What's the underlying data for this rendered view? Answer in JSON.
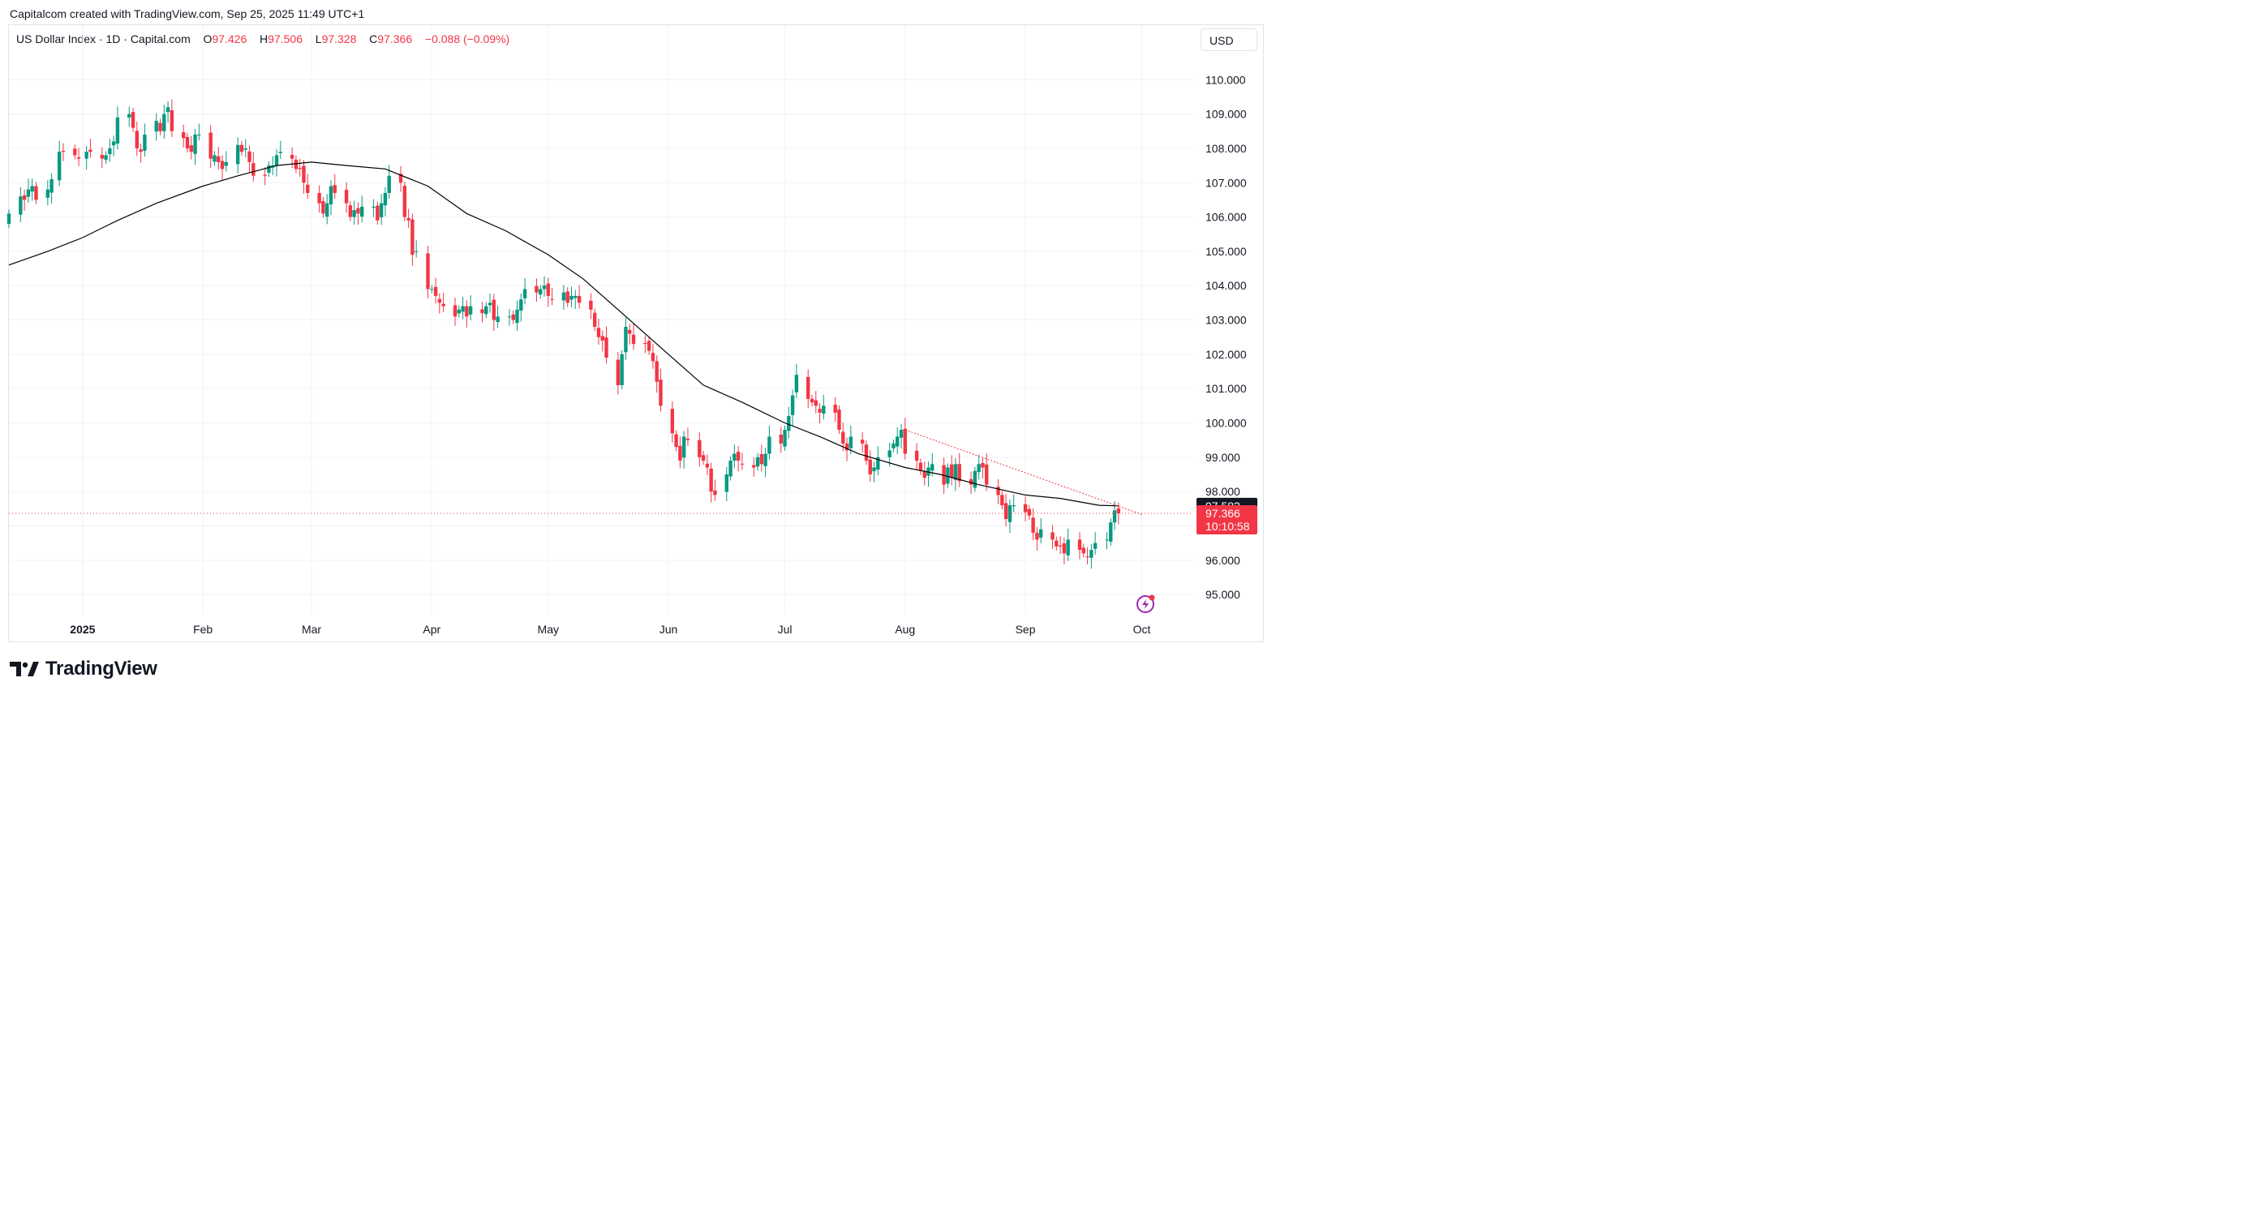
{
  "caption": "Capitalcom created with TradingView.com, Sep 25, 2025 11:49 UTC+1",
  "legend": {
    "symbol": "US Dollar Index · 1D · Capital.com",
    "o_label": "O",
    "o": "97.426",
    "h_label": "H",
    "h": "97.506",
    "l_label": "L",
    "l": "97.328",
    "c_label": "C",
    "c": "97.366",
    "change": "−0.088 (−0.09%)"
  },
  "currency_button": "USD",
  "brand": "TradingView",
  "colors": {
    "up": "#089981",
    "down": "#f23645",
    "ma": "#000000",
    "grid": "#f0f3fa",
    "trend": "#f23645"
  },
  "chart_data": {
    "type": "candlestick",
    "y_axis": {
      "min": 94.6,
      "max": 110.9,
      "ticks": [
        "110.000",
        "109.000",
        "108.000",
        "107.000",
        "106.000",
        "105.000",
        "104.000",
        "103.000",
        "102.000",
        "101.000",
        "100.000",
        "99.000",
        "98.000",
        "97.000",
        "96.000",
        "95.000"
      ],
      "position": "right"
    },
    "x_axis": {
      "start": "2024-12-13",
      "end": "2025-10-08",
      "ticks": [
        {
          "date": "2025-01-01",
          "label": "2025"
        },
        {
          "date": "2025-02-01",
          "label": "Feb"
        },
        {
          "date": "2025-03-01",
          "label": "Mar"
        },
        {
          "date": "2025-04-01",
          "label": "Apr"
        },
        {
          "date": "2025-05-01",
          "label": "May"
        },
        {
          "date": "2025-06-01",
          "label": "Jun"
        },
        {
          "date": "2025-07-01",
          "label": "Jul"
        },
        {
          "date": "2025-08-01",
          "label": "Aug"
        },
        {
          "date": "2025-09-01",
          "label": "Sep"
        },
        {
          "date": "2025-10-01",
          "label": "Oct"
        }
      ]
    },
    "close_series": [
      [
        "2024-12-13",
        106.1
      ],
      [
        "2024-12-16",
        106.6
      ],
      [
        "2024-12-17",
        106.5
      ],
      [
        "2024-12-18",
        106.8
      ],
      [
        "2024-12-19",
        106.9
      ],
      [
        "2024-12-20",
        106.5
      ],
      [
        "2024-12-23",
        106.8
      ],
      [
        "2024-12-24",
        107.1
      ],
      [
        "2024-12-26",
        107.9
      ],
      [
        "2024-12-27",
        107.9
      ],
      [
        "2024-12-30",
        107.8
      ],
      [
        "2024-12-31",
        107.7
      ],
      [
        "2025-01-02",
        107.9
      ],
      [
        "2025-01-03",
        107.9
      ],
      [
        "2025-01-06",
        107.7
      ],
      [
        "2025-01-07",
        107.8
      ],
      [
        "2025-01-08",
        108.0
      ],
      [
        "2025-01-09",
        108.2
      ],
      [
        "2025-01-10",
        108.9
      ],
      [
        "2025-01-13",
        109.0
      ],
      [
        "2025-01-14",
        108.6
      ],
      [
        "2025-01-15",
        108.0
      ],
      [
        "2025-01-16",
        107.9
      ],
      [
        "2025-01-17",
        108.4
      ],
      [
        "2025-01-20",
        108.8
      ],
      [
        "2025-01-21",
        108.5
      ],
      [
        "2025-01-22",
        109.0
      ],
      [
        "2025-01-23",
        109.2
      ],
      [
        "2025-01-24",
        108.5
      ],
      [
        "2025-01-27",
        108.3
      ],
      [
        "2025-01-28",
        108.0
      ],
      [
        "2025-01-29",
        107.9
      ],
      [
        "2025-01-30",
        108.4
      ],
      [
        "2025-01-31",
        108.4
      ],
      [
        "2025-02-03",
        107.7
      ],
      [
        "2025-02-04",
        107.8
      ],
      [
        "2025-02-05",
        107.6
      ],
      [
        "2025-02-06",
        107.4
      ],
      [
        "2025-02-07",
        107.6
      ],
      [
        "2025-02-10",
        108.1
      ],
      [
        "2025-02-11",
        107.9
      ],
      [
        "2025-02-12",
        108.0
      ],
      [
        "2025-02-13",
        107.6
      ],
      [
        "2025-02-14",
        107.2
      ],
      [
        "2025-02-17",
        107.2
      ],
      [
        "2025-02-18",
        107.5
      ],
      [
        "2025-02-19",
        107.5
      ],
      [
        "2025-02-20",
        107.8
      ],
      [
        "2025-02-21",
        107.9
      ],
      [
        "2025-02-24",
        107.7
      ],
      [
        "2025-02-25",
        107.4
      ],
      [
        "2025-02-26",
        107.4
      ],
      [
        "2025-02-27",
        107.0
      ],
      [
        "2025-02-28",
        106.7
      ],
      [
        "2025-03-03",
        106.4
      ],
      [
        "2025-03-04",
        106.1
      ],
      [
        "2025-03-05",
        106.4
      ],
      [
        "2025-03-06",
        106.9
      ],
      [
        "2025-03-07",
        106.7
      ],
      [
        "2025-03-10",
        106.4
      ],
      [
        "2025-03-11",
        106.0
      ],
      [
        "2025-03-12",
        106.2
      ],
      [
        "2025-03-13",
        106.1
      ],
      [
        "2025-03-14",
        106.3
      ],
      [
        "2025-03-17",
        106.3
      ],
      [
        "2025-03-18",
        105.9
      ],
      [
        "2025-03-19",
        106.4
      ],
      [
        "2025-03-20",
        106.7
      ],
      [
        "2025-03-21",
        107.2
      ],
      [
        "2025-03-24",
        107.0
      ],
      [
        "2025-03-25",
        106.0
      ],
      [
        "2025-03-26",
        105.9
      ],
      [
        "2025-03-27",
        104.9
      ],
      [
        "2025-03-28",
        105.0
      ],
      [
        "2025-03-31",
        103.9
      ],
      [
        "2025-04-01",
        103.9
      ],
      [
        "2025-04-02",
        103.7
      ],
      [
        "2025-04-03",
        103.5
      ],
      [
        "2025-04-04",
        103.4
      ],
      [
        "2025-04-07",
        103.1
      ],
      [
        "2025-04-08",
        103.3
      ],
      [
        "2025-04-09",
        103.4
      ],
      [
        "2025-04-10",
        103.1
      ],
      [
        "2025-04-11",
        103.4
      ],
      [
        "2025-04-14",
        103.2
      ],
      [
        "2025-04-15",
        103.4
      ],
      [
        "2025-04-16",
        103.5
      ],
      [
        "2025-04-17",
        103.0
      ],
      [
        "2025-04-18",
        103.1
      ],
      [
        "2025-04-21",
        103.1
      ],
      [
        "2025-04-22",
        103.0
      ],
      [
        "2025-04-23",
        103.3
      ],
      [
        "2025-04-24",
        103.6
      ],
      [
        "2025-04-25",
        103.9
      ],
      [
        "2025-04-28",
        103.8
      ],
      [
        "2025-04-29",
        103.9
      ],
      [
        "2025-04-30",
        104.0
      ],
      [
        "2025-05-01",
        103.7
      ],
      [
        "2025-05-02",
        103.6
      ],
      [
        "2025-05-05",
        103.8
      ],
      [
        "2025-05-06",
        103.5
      ],
      [
        "2025-05-07",
        103.7
      ],
      [
        "2025-05-08",
        103.7
      ],
      [
        "2025-05-09",
        103.5
      ],
      [
        "2025-05-12",
        103.3
      ],
      [
        "2025-05-13",
        102.8
      ],
      [
        "2025-05-14",
        102.5
      ],
      [
        "2025-05-15",
        102.4
      ],
      [
        "2025-05-16",
        101.9
      ],
      [
        "2025-05-19",
        101.1
      ],
      [
        "2025-05-20",
        102.0
      ],
      [
        "2025-05-21",
        102.8
      ],
      [
        "2025-05-22",
        102.6
      ],
      [
        "2025-05-23",
        102.3
      ],
      [
        "2025-05-26",
        102.3
      ],
      [
        "2025-05-27",
        102.1
      ],
      [
        "2025-05-28",
        101.8
      ],
      [
        "2025-05-29",
        101.2
      ],
      [
        "2025-05-30",
        100.5
      ],
      [
        "2025-06-02",
        99.7
      ],
      [
        "2025-06-03",
        99.3
      ],
      [
        "2025-06-04",
        98.9
      ],
      [
        "2025-06-05",
        99.6
      ],
      [
        "2025-06-06",
        99.5
      ],
      [
        "2025-06-09",
        99.0
      ],
      [
        "2025-06-10",
        98.9
      ],
      [
        "2025-06-11",
        98.7
      ],
      [
        "2025-06-12",
        98.0
      ],
      [
        "2025-06-13",
        97.9
      ],
      [
        "2025-06-16",
        98.5
      ],
      [
        "2025-06-17",
        98.9
      ],
      [
        "2025-06-18",
        99.1
      ],
      [
        "2025-06-19",
        98.9
      ],
      [
        "2025-06-20",
        98.8
      ],
      [
        "2025-06-23",
        98.7
      ],
      [
        "2025-06-24",
        99.0
      ],
      [
        "2025-06-25",
        98.8
      ],
      [
        "2025-06-26",
        99.1
      ],
      [
        "2025-06-27",
        99.6
      ],
      [
        "2025-06-30",
        99.4
      ],
      [
        "2025-07-01",
        99.8
      ],
      [
        "2025-07-02",
        100.2
      ],
      [
        "2025-07-03",
        100.8
      ],
      [
        "2025-07-04",
        101.4
      ],
      [
        "2025-07-07",
        100.7
      ],
      [
        "2025-07-08",
        100.6
      ],
      [
        "2025-07-09",
        100.5
      ],
      [
        "2025-07-10",
        100.3
      ],
      [
        "2025-07-11",
        100.5
      ],
      [
        "2025-07-14",
        100.3
      ],
      [
        "2025-07-15",
        99.8
      ],
      [
        "2025-07-16",
        99.4
      ],
      [
        "2025-07-17",
        99.2
      ],
      [
        "2025-07-18",
        99.6
      ],
      [
        "2025-07-21",
        99.4
      ],
      [
        "2025-07-22",
        98.9
      ],
      [
        "2025-07-23",
        98.5
      ],
      [
        "2025-07-24",
        98.7
      ],
      [
        "2025-07-25",
        99.0
      ],
      [
        "2025-07-28",
        99.2
      ],
      [
        "2025-07-29",
        99.4
      ],
      [
        "2025-07-30",
        99.6
      ],
      [
        "2025-07-31",
        99.8
      ],
      [
        "2025-08-01",
        99.1
      ],
      [
        "2025-08-04",
        98.9
      ],
      [
        "2025-08-05",
        98.6
      ],
      [
        "2025-08-06",
        98.4
      ],
      [
        "2025-08-07",
        98.7
      ],
      [
        "2025-08-08",
        98.8
      ],
      [
        "2025-08-11",
        98.2
      ],
      [
        "2025-08-12",
        98.7
      ],
      [
        "2025-08-13",
        98.4
      ],
      [
        "2025-08-14",
        98.8
      ],
      [
        "2025-08-15",
        98.3
      ],
      [
        "2025-08-18",
        98.2
      ],
      [
        "2025-08-19",
        98.6
      ],
      [
        "2025-08-20",
        98.8
      ],
      [
        "2025-08-21",
        98.7
      ],
      [
        "2025-08-22",
        98.2
      ],
      [
        "2025-08-25",
        97.9
      ],
      [
        "2025-08-26",
        97.6
      ],
      [
        "2025-08-27",
        97.2
      ],
      [
        "2025-08-28",
        97.6
      ],
      [
        "2025-08-29",
        97.6
      ],
      [
        "2025-09-01",
        97.4
      ],
      [
        "2025-09-02",
        97.3
      ],
      [
        "2025-09-03",
        96.8
      ],
      [
        "2025-09-04",
        96.6
      ],
      [
        "2025-09-05",
        96.9
      ],
      [
        "2025-09-08",
        96.6
      ],
      [
        "2025-09-09",
        96.4
      ],
      [
        "2025-09-10",
        96.4
      ],
      [
        "2025-09-11",
        96.2
      ],
      [
        "2025-09-12",
        96.6
      ],
      [
        "2025-09-15",
        96.3
      ],
      [
        "2025-09-16",
        96.2
      ],
      [
        "2025-09-17",
        96.1
      ],
      [
        "2025-09-18",
        96.3
      ],
      [
        "2025-09-19",
        96.5
      ],
      [
        "2025-09-22",
        96.6
      ],
      [
        "2025-09-23",
        97.1
      ],
      [
        "2025-09-24",
        97.45
      ],
      [
        "2025-09-25",
        97.366
      ]
    ],
    "moving_average": [
      [
        "2024-12-13",
        104.6
      ],
      [
        "2024-12-23",
        105.0
      ],
      [
        "2025-01-01",
        105.4
      ],
      [
        "2025-01-10",
        105.9
      ],
      [
        "2025-01-20",
        106.4
      ],
      [
        "2025-02-01",
        106.9
      ],
      [
        "2025-02-10",
        107.2
      ],
      [
        "2025-02-20",
        107.5
      ],
      [
        "2025-03-01",
        107.6
      ],
      [
        "2025-03-10",
        107.5
      ],
      [
        "2025-03-20",
        107.4
      ],
      [
        "2025-03-31",
        106.9
      ],
      [
        "2025-04-10",
        106.1
      ],
      [
        "2025-04-20",
        105.6
      ],
      [
        "2025-05-01",
        104.9
      ],
      [
        "2025-05-10",
        104.2
      ],
      [
        "2025-05-20",
        103.2
      ],
      [
        "2025-06-01",
        102.0
      ],
      [
        "2025-06-10",
        101.1
      ],
      [
        "2025-06-20",
        100.6
      ],
      [
        "2025-07-01",
        100.0
      ],
      [
        "2025-07-10",
        99.6
      ],
      [
        "2025-07-20",
        99.1
      ],
      [
        "2025-08-01",
        98.7
      ],
      [
        "2025-08-10",
        98.5
      ],
      [
        "2025-08-20",
        98.2
      ],
      [
        "2025-09-01",
        97.9
      ],
      [
        "2025-09-10",
        97.8
      ],
      [
        "2025-09-20",
        97.6
      ],
      [
        "2025-09-25",
        97.582
      ]
    ],
    "trendline": [
      [
        "2025-08-01",
        99.8
      ],
      [
        "2025-09-25",
        97.5
      ]
    ],
    "last_price": "97.366",
    "countdown": "10:10:58",
    "ma_label": "97.582"
  }
}
